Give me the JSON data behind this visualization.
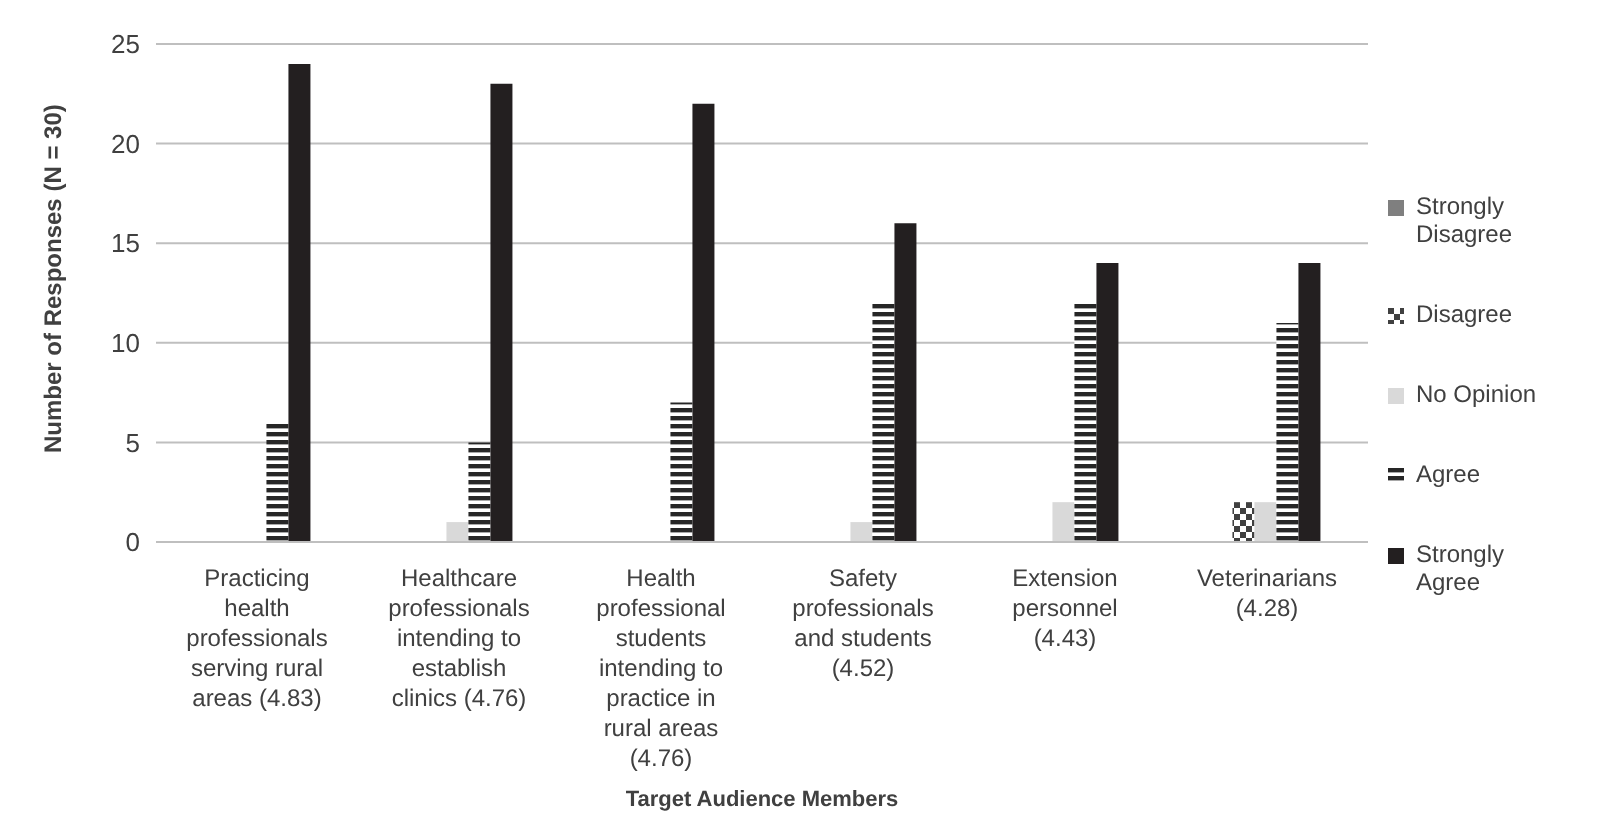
{
  "chart_data": {
    "type": "bar",
    "xlabel": "Target Audience Members",
    "ylabel": "Number of Responses (N = 30)",
    "categories": [
      "Practicing health professionals serving rural areas (4.83)",
      "Healthcare professionals intending to establish clinics (4.76)",
      "Health professional students intending to practice in rural areas (4.76)",
      "Safety professionals and students (4.52)",
      "Extension personnel (4.43)",
      "Veterinarians (4.28)"
    ],
    "series": [
      {
        "name": "Strongly Disagree",
        "color": "#7f7f7f",
        "values": [
          0,
          0,
          0,
          0,
          0,
          0
        ]
      },
      {
        "name": "Disagree",
        "color": "#404040",
        "values": [
          0,
          0,
          0,
          0,
          0,
          2
        ]
      },
      {
        "name": "No Opinion",
        "color": "#d9d9d9",
        "values": [
          0,
          1,
          0,
          1,
          2,
          2
        ]
      },
      {
        "name": "Agree",
        "color": "#262626",
        "values": [
          6,
          5,
          7,
          12,
          12,
          11
        ]
      },
      {
        "name": "Strongly Agree",
        "color": "#231f20",
        "values": [
          24,
          23,
          22,
          16,
          14,
          14
        ]
      }
    ],
    "ylim": [
      0,
      25
    ],
    "yticks": [
      0,
      5,
      10,
      15,
      20,
      25
    ],
    "grid": "y",
    "legend": "right"
  }
}
